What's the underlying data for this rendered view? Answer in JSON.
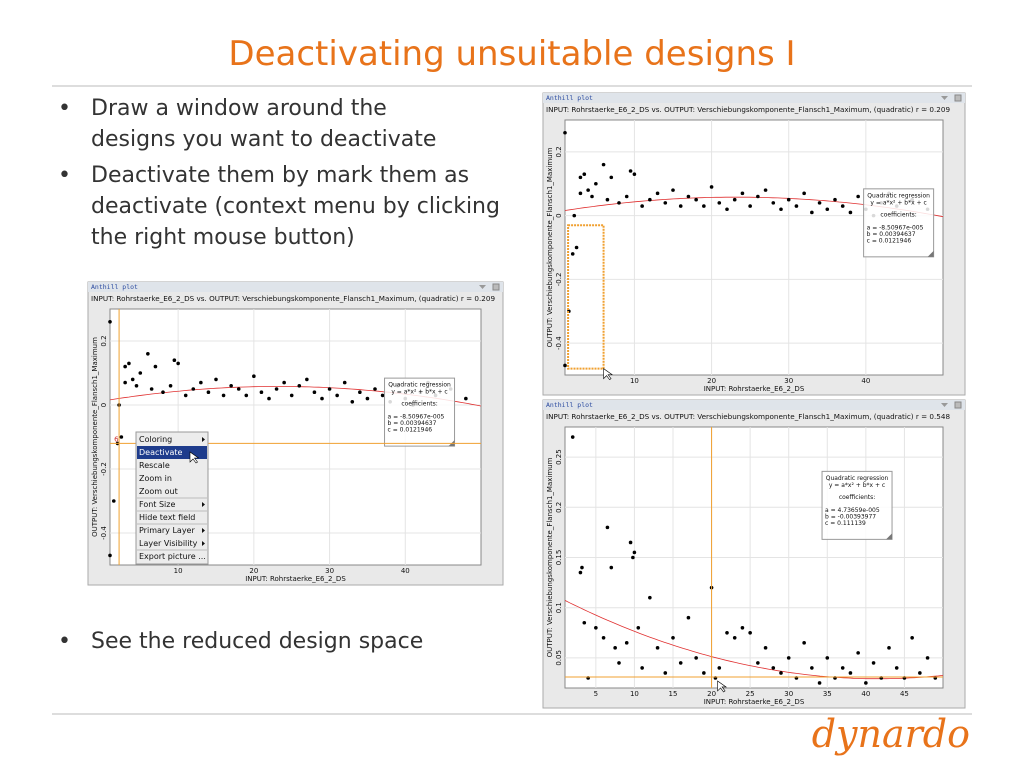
{
  "title": "Deactivating unsuitable designs I",
  "bullets": [
    "Draw a window around the designs you want to deactivate",
    "Deactivate them by mark them as deactivate (context menu by clicking the right mouse button)",
    "See the reduced design space"
  ],
  "logo": "dynardo",
  "plots": [
    {
      "window_title": "Anthill plot",
      "title": "INPUT: Rohrstaerke_E6_2_DS vs. OUTPUT: Verschiebungskomponente_Flansch1_Maximum, (quadratic) r = 0.209",
      "x_label": "INPUT: Rohrstaerke_E6_2_DS",
      "y_label": "OUTPUT: Verschiebungskomponente_Flansch1_Maximum",
      "xlim": [
        1,
        50
      ],
      "ylim": [
        -0.5,
        0.3
      ],
      "xticks": [
        10,
        20,
        30,
        40
      ],
      "yticks": [
        -0.4,
        -0.2,
        0,
        0.2
      ],
      "x": [
        1,
        1,
        1.5,
        2,
        2.2,
        2.5,
        3,
        3,
        3.5,
        4,
        4.5,
        5,
        6,
        6.5,
        7,
        8,
        9,
        9.5,
        10,
        11,
        12,
        13,
        14,
        15,
        16,
        17,
        18,
        19,
        20,
        21,
        22,
        23,
        24,
        25,
        26,
        27,
        28,
        29,
        30,
        31,
        32,
        33,
        34,
        35,
        36,
        37,
        38,
        39,
        40,
        41,
        42,
        43,
        44,
        46,
        48
      ],
      "y": [
        0.26,
        -0.47,
        -0.3,
        -0.12,
        0.0,
        -0.1,
        0.07,
        0.12,
        0.13,
        0.08,
        0.06,
        0.1,
        0.16,
        0.05,
        0.12,
        0.04,
        0.06,
        0.14,
        0.13,
        0.03,
        0.05,
        0.07,
        0.04,
        0.08,
        0.03,
        0.06,
        0.05,
        0.03,
        0.09,
        0.04,
        0.02,
        0.05,
        0.07,
        0.03,
        0.06,
        0.08,
        0.04,
        0.02,
        0.05,
        0.03,
        0.07,
        0.01,
        0.04,
        0.02,
        0.05,
        0.03,
        0.01,
        0.06,
        0.02,
        0.0,
        0.04,
        0.07,
        0.03,
        0.05,
        0.02
      ],
      "regression": {
        "title": "Quadratic regression",
        "formula": "y = a*x² + b*x + c",
        "coef_title": "coefficients:",
        "rows": [
          "a =   -8.50967e-005",
          "b =    0.00394637",
          "c =    0.0121946"
        ]
      },
      "coefficients": {
        "a": -8.50967e-05,
        "b": 0.00394637,
        "c": 0.0121946
      }
    },
    {
      "window_title": "Anthill plot",
      "title": "INPUT: Rohrstaerke_E6_2_DS vs. OUTPUT: Verschiebungskomponente_Flansch1_Maximum, (quadratic) r = 0.548",
      "x_label": "INPUT: Rohrstaerke_E6_2_DS",
      "y_label": "OUTPUT: Verschiebungskomponente_Flansch1_Maximum",
      "xlim": [
        1,
        50
      ],
      "ylim": [
        0.02,
        0.28
      ],
      "xticks": [
        5,
        10,
        15,
        20,
        25,
        30,
        35,
        40,
        45
      ],
      "yticks": [
        0.05,
        0.1,
        0.15,
        0.2,
        0.25
      ],
      "x": [
        2,
        3,
        3.2,
        3.5,
        4,
        5,
        6,
        6.5,
        7,
        7.5,
        8,
        9,
        9.5,
        9.8,
        10,
        10.5,
        11,
        12,
        13,
        14,
        15,
        16,
        17,
        18,
        19,
        20,
        20.5,
        21,
        22,
        23,
        24,
        25,
        26,
        27,
        28,
        29,
        30,
        31,
        32,
        33,
        34,
        35,
        36,
        37,
        38,
        39,
        40,
        41,
        42,
        43,
        44,
        45,
        46,
        47,
        48,
        49
      ],
      "y": [
        0.27,
        0.135,
        0.14,
        0.085,
        0.03,
        0.08,
        0.07,
        0.18,
        0.14,
        0.06,
        0.045,
        0.065,
        0.165,
        0.15,
        0.155,
        0.08,
        0.04,
        0.11,
        0.06,
        0.035,
        0.07,
        0.045,
        0.09,
        0.05,
        0.035,
        0.12,
        0.03,
        0.04,
        0.075,
        0.07,
        0.08,
        0.075,
        0.045,
        0.06,
        0.04,
        0.035,
        0.05,
        0.03,
        0.065,
        0.04,
        0.025,
        0.05,
        0.03,
        0.04,
        0.035,
        0.055,
        0.025,
        0.045,
        0.03,
        0.06,
        0.04,
        0.03,
        0.07,
        0.035,
        0.05,
        0.03
      ],
      "regression": {
        "title": "Quadratic regression",
        "formula": "y = a*x² + b*x + c",
        "coef_title": "coefficients:",
        "rows": [
          "a =    4.73659e-005",
          "b =   -0.00393977",
          "c =    0.111139"
        ]
      },
      "coefficients": {
        "a": 4.73659e-05,
        "b": -0.00393977,
        "c": 0.111139
      },
      "crosshair": {
        "x": 20,
        "y": 0.031
      }
    }
  ],
  "left_view": {
    "crosshair": {
      "x": 2.2,
      "y": -0.12
    },
    "marker_label": "6",
    "context_menu": [
      "Coloring",
      "Deactivate",
      "Rescale",
      "Zoom in",
      "Zoom out",
      "Font Size",
      "Hide text field",
      "Primary Layer",
      "Layer Visibility",
      "Export picture ..."
    ]
  },
  "top_view": {
    "selection": {
      "x": [
        1.4,
        6
      ],
      "y": [
        -0.48,
        -0.03
      ]
    }
  }
}
